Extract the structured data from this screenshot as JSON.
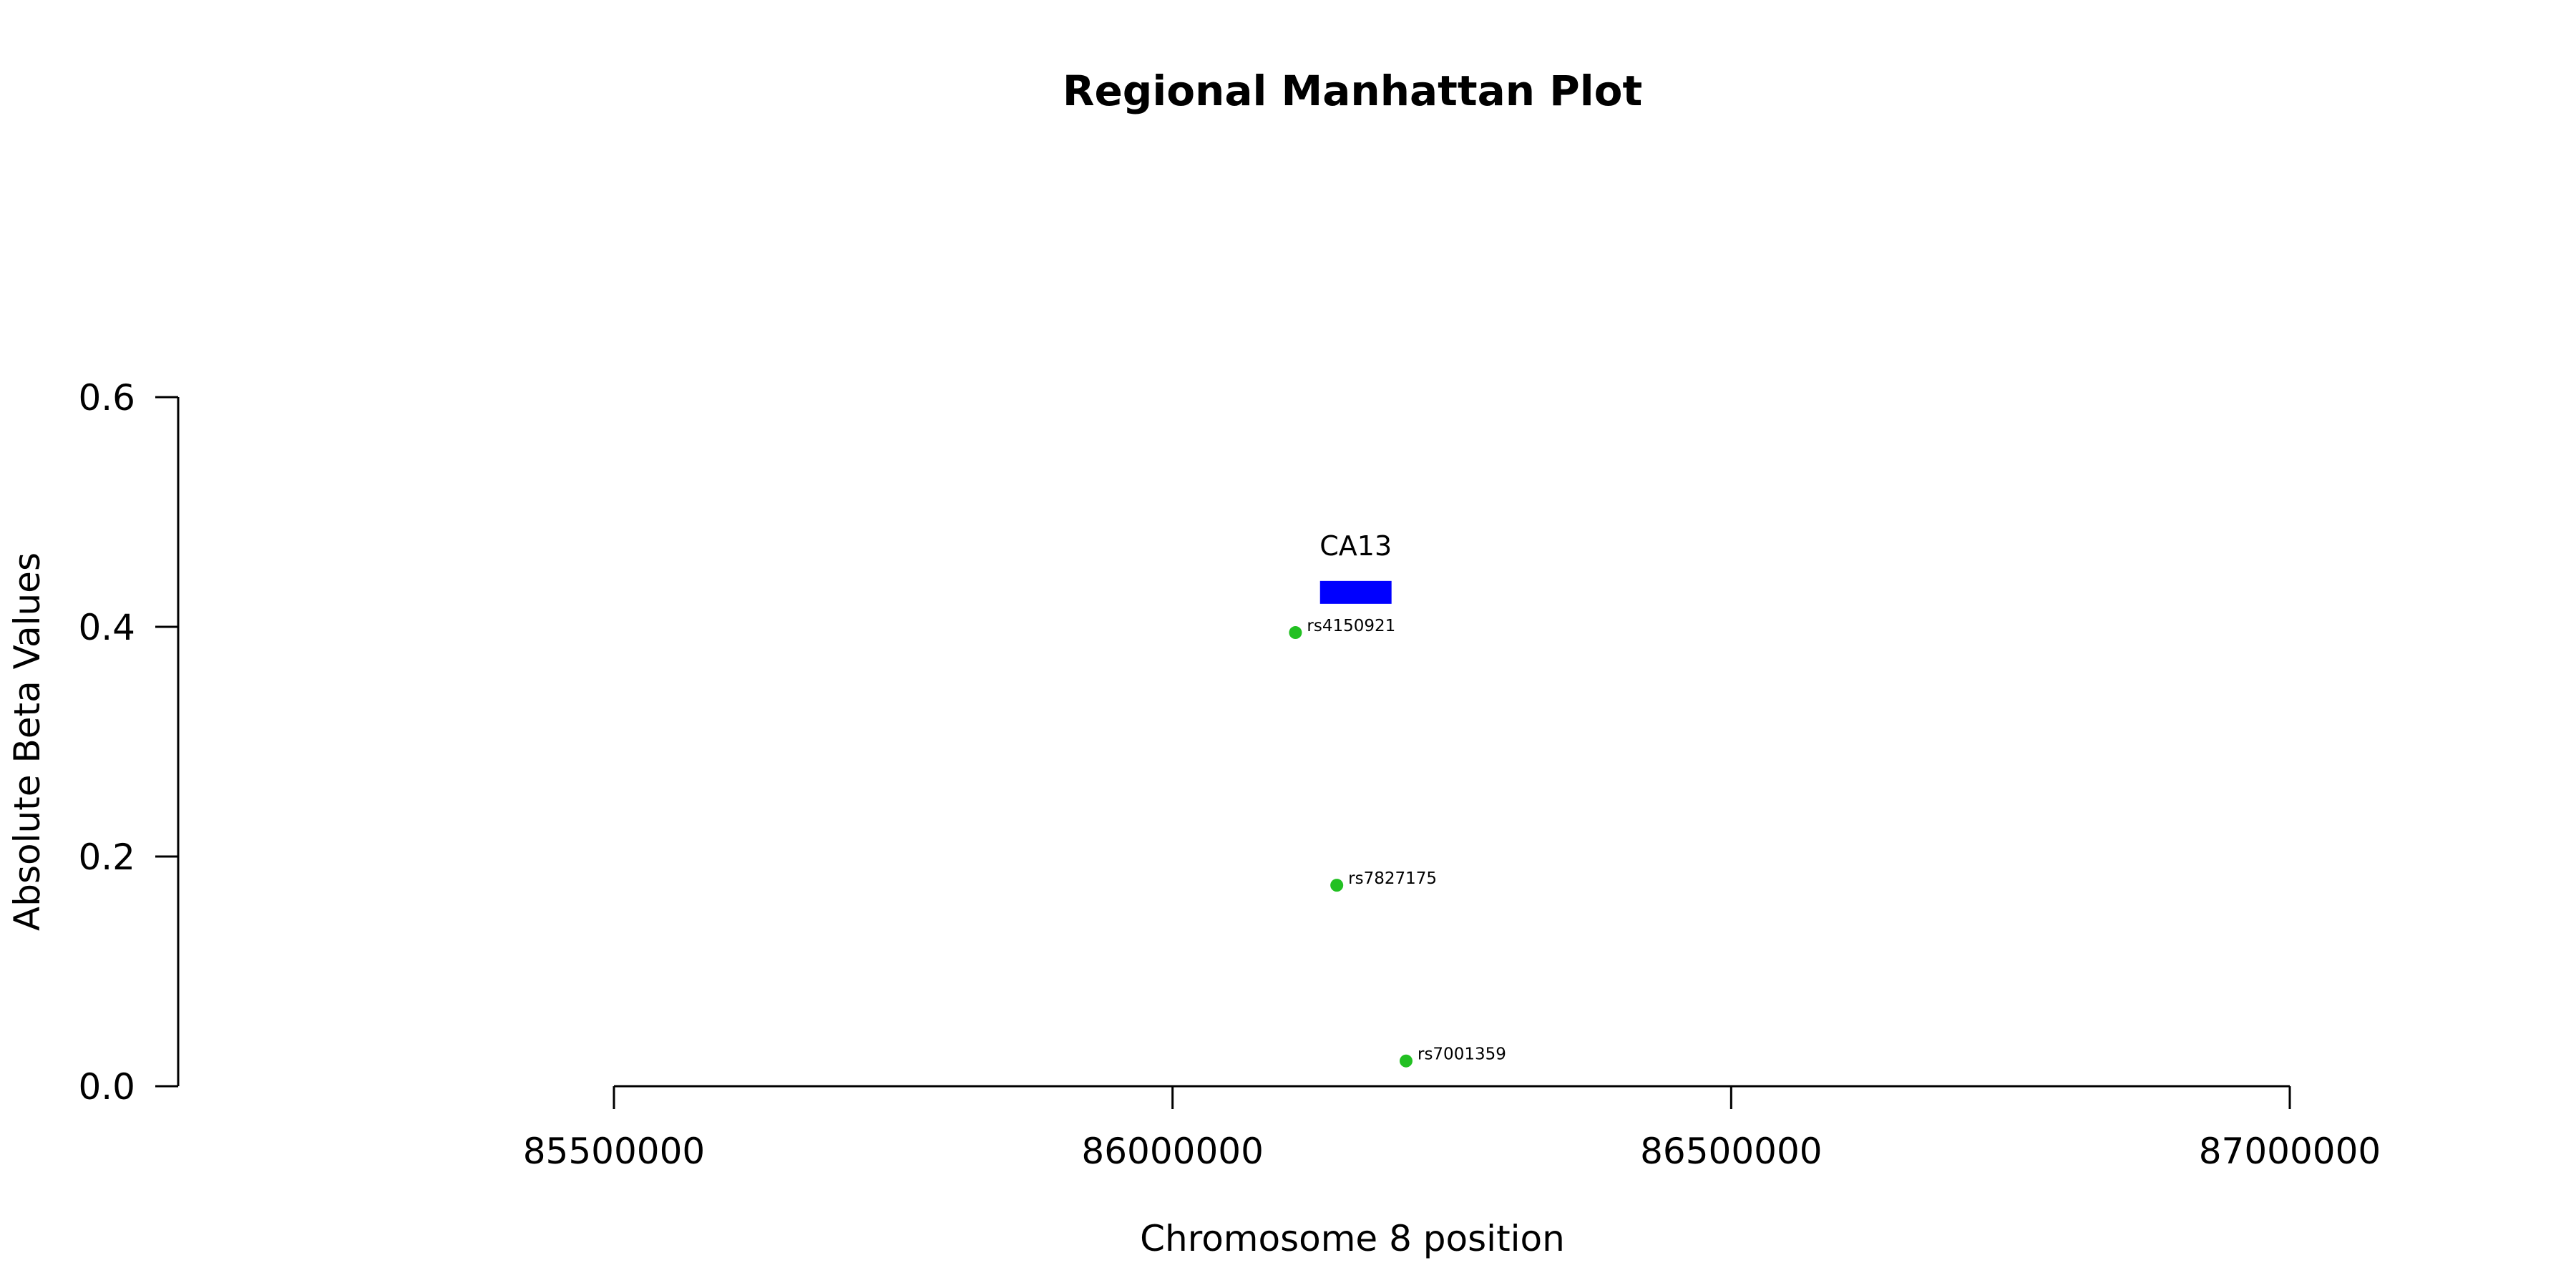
{
  "chart_data": {
    "type": "scatter",
    "title": "Regional Manhattan Plot",
    "xlabel": "Chromosome 8 position",
    "ylabel": "Absolute Beta Values",
    "xlim": [
      85500000,
      87000000
    ],
    "ylim": [
      0,
      0.6
    ],
    "x_ticks": [
      85500000,
      86000000,
      86500000,
      87000000
    ],
    "x_tick_labels": [
      "85500000",
      "86000000",
      "86500000",
      "87000000"
    ],
    "y_ticks": [
      0,
      0.2,
      0.4,
      0.6
    ],
    "y_tick_labels": [
      "0.0",
      "0.2",
      "0.4",
      "0.6"
    ],
    "grid": false,
    "legend": "none",
    "point_color": "#22c022",
    "points": [
      {
        "label": "rs4150921",
        "x": 86110000,
        "y": 0.395
      },
      {
        "label": "rs7827175",
        "x": 86147000,
        "y": 0.175
      },
      {
        "label": "rs7001359",
        "x": 86209000,
        "y": 0.022
      }
    ],
    "genes": [
      {
        "name": "CA13",
        "start": 86132000,
        "end": 86196000,
        "y": 0.43,
        "color": "#0000ff"
      }
    ]
  }
}
